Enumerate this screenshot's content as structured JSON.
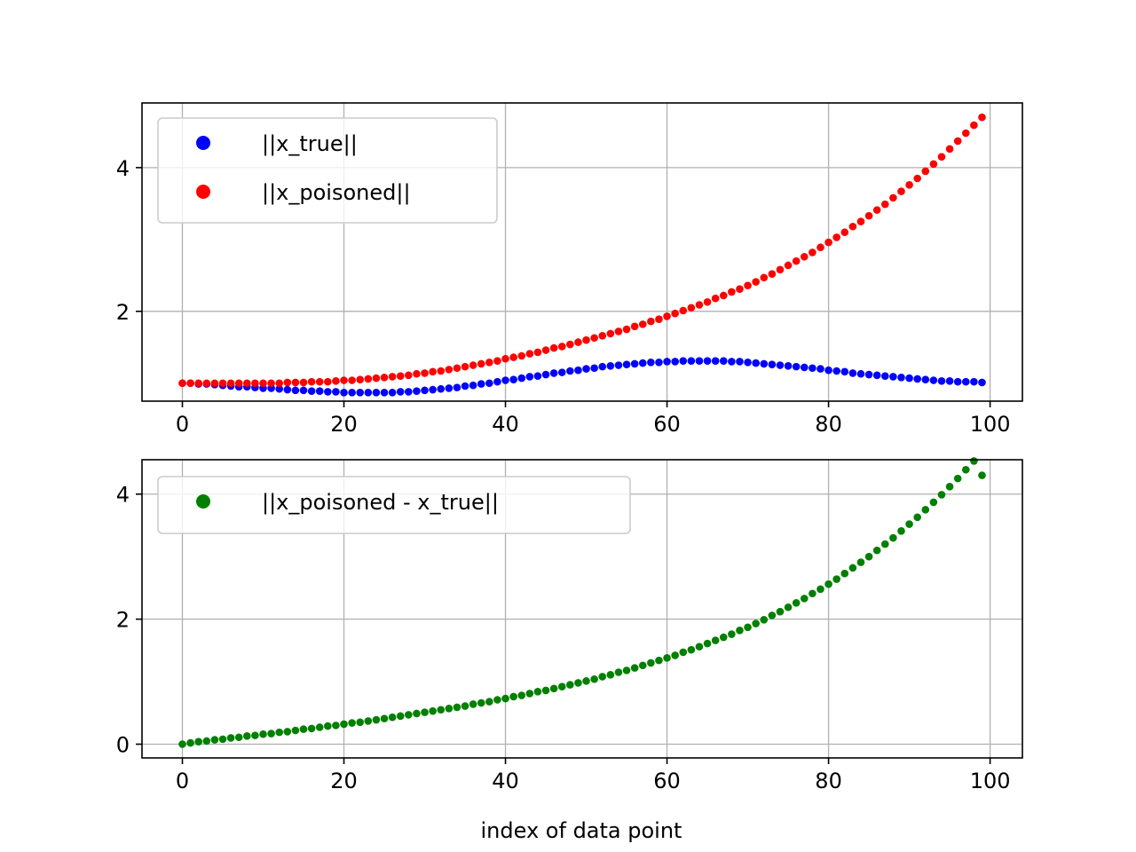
{
  "figure": {
    "background": "#ffffff"
  },
  "chart_data": [
    {
      "type": "scatter",
      "title": "",
      "xlabel": "index of data point",
      "ylabel": "",
      "xlim": [
        -5,
        104
      ],
      "ylim": [
        0.75,
        4.9
      ],
      "xticks": [
        0,
        20,
        40,
        60,
        80,
        100
      ],
      "xtick_labels": [
        "0",
        "20",
        "40",
        "60",
        "80",
        "100"
      ],
      "yticks": [
        2,
        4
      ],
      "ytick_labels": [
        "2",
        "4"
      ],
      "grid": true,
      "legend_position": "upper left",
      "series": [
        {
          "name": "||x_true||",
          "color": "#0000ff",
          "x": [
            0,
            1,
            2,
            3,
            4,
            5,
            6,
            7,
            8,
            9,
            10,
            11,
            12,
            13,
            14,
            15,
            16,
            17,
            18,
            19,
            20,
            21,
            22,
            23,
            24,
            25,
            26,
            27,
            28,
            29,
            30,
            31,
            32,
            33,
            34,
            35,
            36,
            37,
            38,
            39,
            40,
            41,
            42,
            43,
            44,
            45,
            46,
            47,
            48,
            49,
            50,
            51,
            52,
            53,
            54,
            55,
            56,
            57,
            58,
            59,
            60,
            61,
            62,
            63,
            64,
            65,
            66,
            67,
            68,
            69,
            70,
            71,
            72,
            73,
            74,
            75,
            76,
            77,
            78,
            79,
            80,
            81,
            82,
            83,
            84,
            85,
            86,
            87,
            88,
            89,
            90,
            91,
            92,
            93,
            94,
            95,
            96,
            97,
            98,
            99
          ],
          "y": [
            1.0,
            1.0,
            0.99,
            0.99,
            0.98,
            0.97,
            0.96,
            0.95,
            0.95,
            0.94,
            0.93,
            0.93,
            0.92,
            0.91,
            0.9,
            0.9,
            0.89,
            0.89,
            0.88,
            0.88,
            0.87,
            0.87,
            0.87,
            0.87,
            0.87,
            0.87,
            0.87,
            0.88,
            0.88,
            0.89,
            0.9,
            0.91,
            0.92,
            0.93,
            0.94,
            0.96,
            0.97,
            0.99,
            1.0,
            1.02,
            1.04,
            1.05,
            1.07,
            1.09,
            1.1,
            1.12,
            1.14,
            1.15,
            1.17,
            1.18,
            1.2,
            1.21,
            1.23,
            1.24,
            1.25,
            1.26,
            1.27,
            1.28,
            1.29,
            1.29,
            1.3,
            1.3,
            1.31,
            1.31,
            1.31,
            1.31,
            1.31,
            1.31,
            1.3,
            1.3,
            1.29,
            1.28,
            1.27,
            1.26,
            1.25,
            1.24,
            1.23,
            1.22,
            1.21,
            1.2,
            1.18,
            1.17,
            1.16,
            1.14,
            1.13,
            1.12,
            1.11,
            1.1,
            1.09,
            1.08,
            1.07,
            1.06,
            1.05,
            1.04,
            1.03,
            1.03,
            1.02,
            1.02,
            1.02,
            1.01
          ]
        },
        {
          "name": "||x_poisoned||",
          "color": "#ff0000",
          "x": [
            0,
            1,
            2,
            3,
            4,
            5,
            6,
            7,
            8,
            9,
            10,
            11,
            12,
            13,
            14,
            15,
            16,
            17,
            18,
            19,
            20,
            21,
            22,
            23,
            24,
            25,
            26,
            27,
            28,
            29,
            30,
            31,
            32,
            33,
            34,
            35,
            36,
            37,
            38,
            39,
            40,
            41,
            42,
            43,
            44,
            45,
            46,
            47,
            48,
            49,
            50,
            51,
            52,
            53,
            54,
            55,
            56,
            57,
            58,
            59,
            60,
            61,
            62,
            63,
            64,
            65,
            66,
            67,
            68,
            69,
            70,
            71,
            72,
            73,
            74,
            75,
            76,
            77,
            78,
            79,
            80,
            81,
            82,
            83,
            84,
            85,
            86,
            87,
            88,
            89,
            90,
            91,
            92,
            93,
            94,
            95,
            96,
            97,
            98,
            99
          ],
          "y": [
            1.0,
            1.0,
            1.0,
            1.0,
            1.0,
            1.0,
            1.0,
            1.0,
            1.0,
            1.0,
            1.0,
            1.0,
            1.0,
            1.01,
            1.01,
            1.01,
            1.02,
            1.02,
            1.02,
            1.03,
            1.04,
            1.04,
            1.05,
            1.06,
            1.07,
            1.08,
            1.09,
            1.1,
            1.11,
            1.13,
            1.14,
            1.16,
            1.17,
            1.19,
            1.21,
            1.23,
            1.25,
            1.27,
            1.29,
            1.31,
            1.34,
            1.36,
            1.38,
            1.41,
            1.43,
            1.46,
            1.49,
            1.51,
            1.54,
            1.57,
            1.6,
            1.63,
            1.66,
            1.69,
            1.72,
            1.75,
            1.79,
            1.82,
            1.86,
            1.89,
            1.93,
            1.97,
            2.01,
            2.05,
            2.09,
            2.13,
            2.18,
            2.22,
            2.27,
            2.31,
            2.36,
            2.41,
            2.47,
            2.52,
            2.58,
            2.64,
            2.7,
            2.76,
            2.82,
            2.89,
            2.96,
            3.03,
            3.1,
            3.18,
            3.25,
            3.33,
            3.41,
            3.49,
            3.58,
            3.67,
            3.76,
            3.85,
            3.95,
            4.05,
            4.15,
            4.26,
            4.37,
            4.48,
            4.59,
            4.7
          ]
        }
      ]
    },
    {
      "type": "scatter",
      "title": "",
      "xlabel": "index of data point",
      "ylabel": "",
      "xlim": [
        -5,
        104
      ],
      "ylim": [
        -0.22,
        4.55
      ],
      "xticks": [
        0,
        20,
        40,
        60,
        80,
        100
      ],
      "xtick_labels": [
        "0",
        "20",
        "40",
        "60",
        "80",
        "100"
      ],
      "yticks": [
        0,
        2,
        4
      ],
      "ytick_labels": [
        "0",
        "2",
        "4"
      ],
      "grid": true,
      "legend_position": "upper left",
      "series": [
        {
          "name": "||x_poisoned - x_true||",
          "color": "#008000",
          "x": [
            0,
            1,
            2,
            3,
            4,
            5,
            6,
            7,
            8,
            9,
            10,
            11,
            12,
            13,
            14,
            15,
            16,
            17,
            18,
            19,
            20,
            21,
            22,
            23,
            24,
            25,
            26,
            27,
            28,
            29,
            30,
            31,
            32,
            33,
            34,
            35,
            36,
            37,
            38,
            39,
            40,
            41,
            42,
            43,
            44,
            45,
            46,
            47,
            48,
            49,
            50,
            51,
            52,
            53,
            54,
            55,
            56,
            57,
            58,
            59,
            60,
            61,
            62,
            63,
            64,
            65,
            66,
            67,
            68,
            69,
            70,
            71,
            72,
            73,
            74,
            75,
            76,
            77,
            78,
            79,
            80,
            81,
            82,
            83,
            84,
            85,
            86,
            87,
            88,
            89,
            90,
            91,
            92,
            93,
            94,
            95,
            96,
            97,
            98,
            99
          ],
          "y": [
            0.0,
            0.02,
            0.04,
            0.05,
            0.07,
            0.08,
            0.1,
            0.11,
            0.13,
            0.14,
            0.16,
            0.17,
            0.19,
            0.2,
            0.22,
            0.24,
            0.25,
            0.27,
            0.29,
            0.3,
            0.32,
            0.34,
            0.35,
            0.37,
            0.39,
            0.41,
            0.43,
            0.45,
            0.47,
            0.49,
            0.51,
            0.53,
            0.55,
            0.57,
            0.59,
            0.61,
            0.64,
            0.66,
            0.68,
            0.71,
            0.73,
            0.76,
            0.78,
            0.81,
            0.84,
            0.86,
            0.89,
            0.92,
            0.95,
            0.98,
            1.01,
            1.04,
            1.08,
            1.11,
            1.15,
            1.18,
            1.22,
            1.26,
            1.3,
            1.34,
            1.38,
            1.42,
            1.47,
            1.51,
            1.56,
            1.61,
            1.66,
            1.71,
            1.76,
            1.82,
            1.87,
            1.93,
            1.99,
            2.06,
            2.12,
            2.19,
            2.26,
            2.33,
            2.41,
            2.48,
            2.56,
            2.64,
            2.73,
            2.82,
            2.91,
            3.0,
            3.1,
            3.2,
            3.3,
            3.41,
            3.52,
            3.63,
            3.75,
            3.87,
            3.99,
            4.12,
            4.25,
            4.39,
            4.53,
            4.3
          ]
        }
      ]
    }
  ]
}
